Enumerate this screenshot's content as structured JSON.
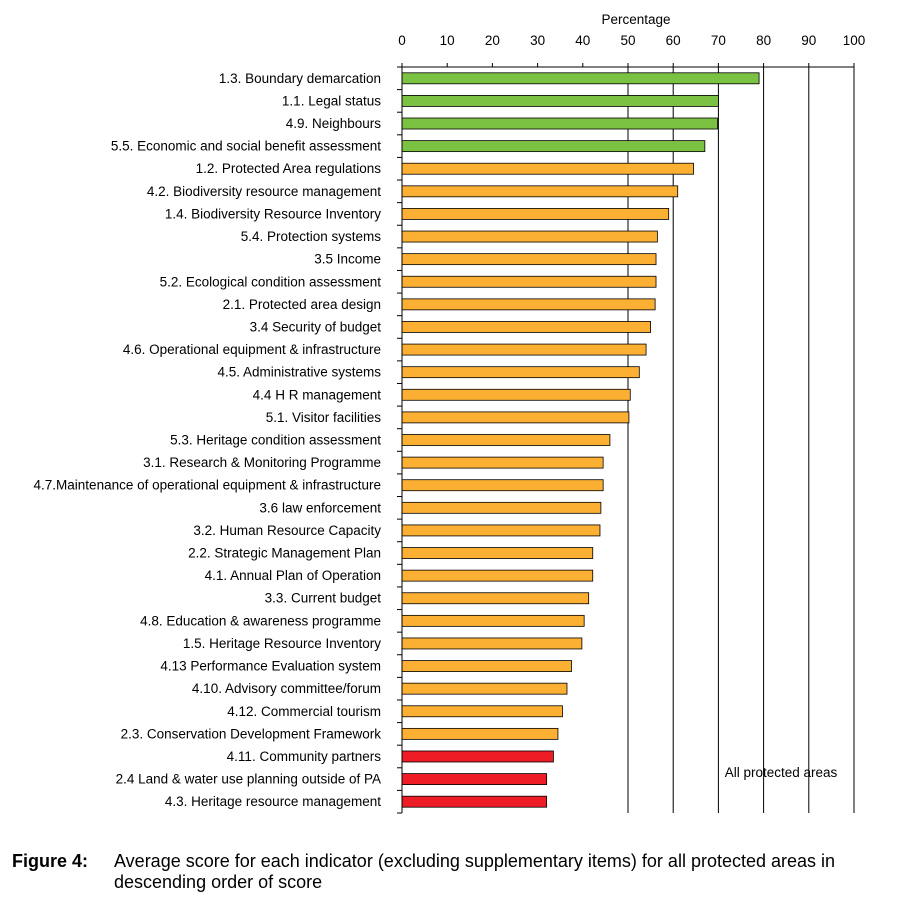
{
  "chart_data": {
    "type": "bar",
    "orientation": "horizontal",
    "xlabel": "Percentage",
    "ylabel": "",
    "xlim": [
      0,
      100
    ],
    "x_ticks": [
      0,
      10,
      20,
      30,
      40,
      50,
      60,
      70,
      80,
      90,
      100
    ],
    "grid": "vertical lines at 50, 60, 70, 80, 90, 100",
    "annotation": "All protected areas",
    "categories": [
      "1.3. Boundary demarcation",
      "1.1. Legal status",
      "4.9. Neighbours",
      "5.5. Economic and social benefit assessment",
      "1.2. Protected Area regulations",
      "4.2. Biodiversity resource management",
      "1.4. Biodiversity Resource Inventory",
      "5.4. Protection systems",
      "3.5 Income",
      "5.2. Ecological condition assessment",
      "2.1. Protected area design",
      "3.4 Security of budget",
      "4.6. Operational equipment & infrastructure",
      "4.5. Administrative systems",
      "4.4 H R management",
      "5.1. Visitor facilities",
      "5.3. Heritage condition assessment",
      "3.1. Research & Monitoring Programme",
      "4.7.Maintenance of operational equipment & infrastructure",
      "3.6 law enforcement",
      "3.2. Human Resource Capacity",
      "2.2. Strategic Management Plan",
      "4.1. Annual Plan of Operation",
      "3.3. Current budget",
      "4.8. Education & awareness programme",
      "1.5. Heritage Resource Inventory",
      "4.13 Performance Evaluation system",
      "4.10. Advisory committee/forum",
      "4.12. Commercial tourism",
      "2.3. Conservation Development Framework",
      "4.11. Community partners",
      "2.4 Land  & water use planning outside of PA",
      "4.3. Heritage resource management"
    ],
    "values": [
      79,
      70,
      69.8,
      67,
      64.5,
      61,
      59,
      56.5,
      56.2,
      56.2,
      56,
      55,
      54,
      52.5,
      50.5,
      50.2,
      46,
      44.5,
      44.5,
      44,
      43.8,
      42.2,
      42.2,
      41.3,
      40.3,
      39.8,
      37.5,
      36.5,
      35.5,
      34.5,
      33.5,
      32,
      32
    ],
    "bar_colors": [
      "#7cc242",
      "#7cc242",
      "#7cc242",
      "#7cc242",
      "#fbb034",
      "#fbb034",
      "#fbb034",
      "#fbb034",
      "#fbb034",
      "#fbb034",
      "#fbb034",
      "#fbb034",
      "#fbb034",
      "#fbb034",
      "#fbb034",
      "#fbb034",
      "#fbb034",
      "#fbb034",
      "#fbb034",
      "#fbb034",
      "#fbb034",
      "#fbb034",
      "#fbb034",
      "#fbb034",
      "#fbb034",
      "#fbb034",
      "#fbb034",
      "#fbb034",
      "#fbb034",
      "#fbb034",
      "#ee1c25",
      "#ee1c25",
      "#ee1c25"
    ]
  },
  "caption": {
    "label": "Figure 4:",
    "text": "Average score for each indicator (excluding supplementary items) for all protected areas in descending order of score"
  }
}
